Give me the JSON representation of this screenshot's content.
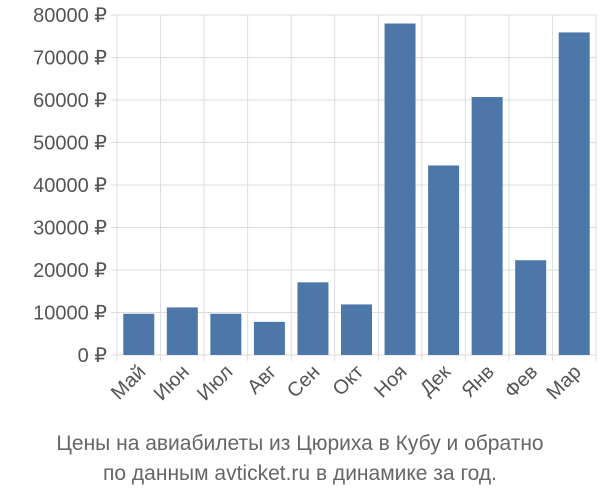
{
  "chart_data": {
    "type": "bar",
    "categories": [
      "Май",
      "Июн",
      "Июл",
      "Авг",
      "Сен",
      "Окт",
      "Ноя",
      "Дек",
      "Янв",
      "Фев",
      "Мар"
    ],
    "values": [
      9700,
      11200,
      9700,
      7800,
      17100,
      11900,
      78000,
      44600,
      60700,
      22300,
      75900
    ],
    "ylim": [
      0,
      80000
    ],
    "yticks": [
      0,
      10000,
      20000,
      30000,
      40000,
      50000,
      60000,
      70000,
      80000
    ],
    "ytick_labels": [
      "0 ₽",
      "10000 ₽",
      "20000 ₽",
      "30000 ₽",
      "40000 ₽",
      "50000 ₽",
      "60000 ₽",
      "70000 ₽",
      "80000 ₽"
    ],
    "grid": true,
    "bar_color": "#4c77a8",
    "caption_line1": "Цены на авиабилеты из Цюриха в Кубу и обратно",
    "caption_line2": "по данным avticket.ru в динамике за год."
  }
}
